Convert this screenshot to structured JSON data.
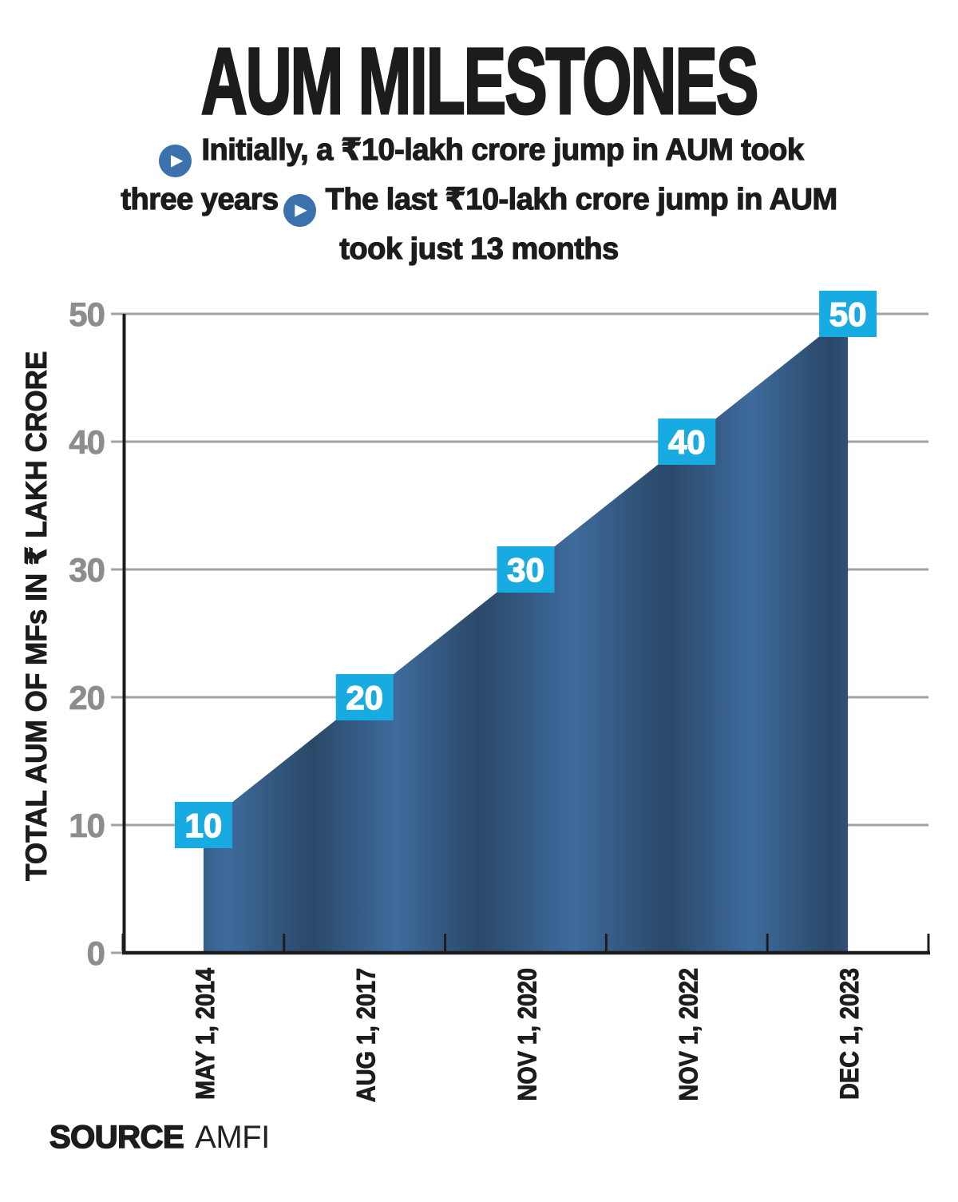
{
  "header": {
    "title": "AUM MILESTONES",
    "subtitle_line1": "Initially, a ₹10-lakh crore jump in AUM took",
    "subtitle_line2_pre": "three years",
    "subtitle_line2_post": "The last ₹10-lakh crore jump in AUM",
    "subtitle_line3": "took just 13 months"
  },
  "icons": {
    "play_bullet": "▶"
  },
  "source": {
    "label": "SOURCE",
    "value": "AMFI"
  },
  "colors": {
    "title_black": "#1c1c1c",
    "bullet_blue": "#3b72ad",
    "badge_cyan": "#18abe2",
    "badge_text": "#ffffff",
    "area_light": "#3e6b9d",
    "area_dark": "#2a4868",
    "area_edge_dark": "#27425f",
    "gridline_gray": "#a2a2a2",
    "tick_label_gray": "#8d8d8d",
    "axis_black": "#1d1d1d"
  },
  "chart_data": {
    "type": "area",
    "title": "AUM MILESTONES",
    "categories": [
      "MAY 1, 2014",
      "AUG 1, 2017",
      "NOV 1, 2020",
      "NOV 1, 2022",
      "DEC 1, 2023"
    ],
    "values": [
      10,
      20,
      30,
      40,
      50
    ],
    "point_labels": [
      "10",
      "20",
      "30",
      "40",
      "50"
    ],
    "xlabel": "",
    "ylabel": "TOTAL AUM OF MFs IN ₹ LAKH CRORE",
    "yticks": [
      0,
      10,
      20,
      30,
      40,
      50
    ],
    "ylim": [
      0,
      50
    ],
    "grid": true,
    "legend_position": "none",
    "annotations": [
      "Initially, a ₹10-lakh crore jump in AUM took three years",
      "The last ₹10-lakh crore jump in AUM took just 13 months"
    ],
    "source": "AMFI"
  }
}
